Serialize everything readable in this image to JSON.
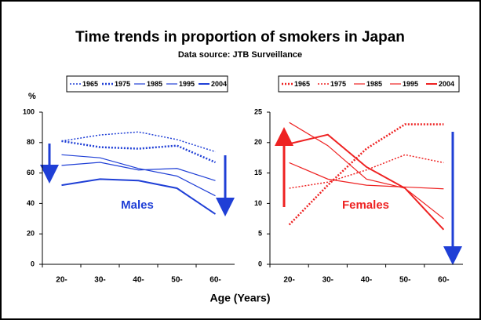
{
  "chart_data": [
    {
      "type": "line",
      "title": "Time trends in proportion of smokers in Japan",
      "subtitle": "Data source: JTB Surveillance",
      "ylabel": "%",
      "xlabel": "Age (Years)",
      "annotation": "Males",
      "annotation_color": "#1f3fd6",
      "categories": [
        "20-",
        "30-",
        "40-",
        "50-",
        "60-"
      ],
      "ylim": [
        0,
        100
      ],
      "yticks": [
        0,
        20,
        40,
        60,
        80,
        100
      ],
      "series": [
        {
          "name": "1965",
          "color": "#1f3fd6",
          "dash": "dotted",
          "width": 1.5,
          "values": [
            81,
            85,
            87,
            82,
            74
          ]
        },
        {
          "name": "1975",
          "color": "#1f3fd6",
          "dash": "dotted",
          "width": 2.5,
          "values": [
            81,
            77,
            76,
            78,
            67
          ]
        },
        {
          "name": "1985",
          "color": "#1f3fd6",
          "dash": "solid",
          "width": 1.2,
          "values": [
            72,
            70,
            63,
            58,
            45
          ]
        },
        {
          "name": "1995",
          "color": "#1f3fd6",
          "dash": "solid",
          "width": 1.2,
          "values": [
            65,
            67,
            62,
            63,
            55
          ]
        },
        {
          "name": "2004",
          "color": "#1f3fd6",
          "dash": "solid",
          "width": 2,
          "values": [
            52,
            56,
            55,
            50,
            33
          ]
        }
      ]
    },
    {
      "type": "line",
      "annotation": "Females",
      "annotation_color": "#ee2222",
      "categories": [
        "20-",
        "30-",
        "40-",
        "50-",
        "60-"
      ],
      "ylim": [
        0,
        25
      ],
      "yticks": [
        0,
        5,
        10,
        15,
        20,
        25
      ],
      "series": [
        {
          "name": "1965",
          "color": "#ee2222",
          "dash": "dotted",
          "width": 2.5,
          "values": [
            6.5,
            13,
            19,
            23,
            23
          ]
        },
        {
          "name": "1975",
          "color": "#ee2222",
          "dash": "dotted",
          "width": 1.5,
          "values": [
            12.5,
            13.5,
            15.5,
            18,
            16.7
          ]
        },
        {
          "name": "1985",
          "color": "#ee2222",
          "dash": "solid",
          "width": 1.2,
          "values": [
            16.7,
            14,
            13,
            12.7,
            12.4
          ]
        },
        {
          "name": "1995",
          "color": "#ee2222",
          "dash": "solid",
          "width": 1.2,
          "values": [
            23.3,
            19.5,
            14,
            12.5,
            7.5
          ]
        },
        {
          "name": "2004",
          "color": "#ee2222",
          "dash": "solid",
          "width": 2,
          "values": [
            19.8,
            21.3,
            16,
            12.5,
            5.7
          ]
        }
      ]
    }
  ]
}
